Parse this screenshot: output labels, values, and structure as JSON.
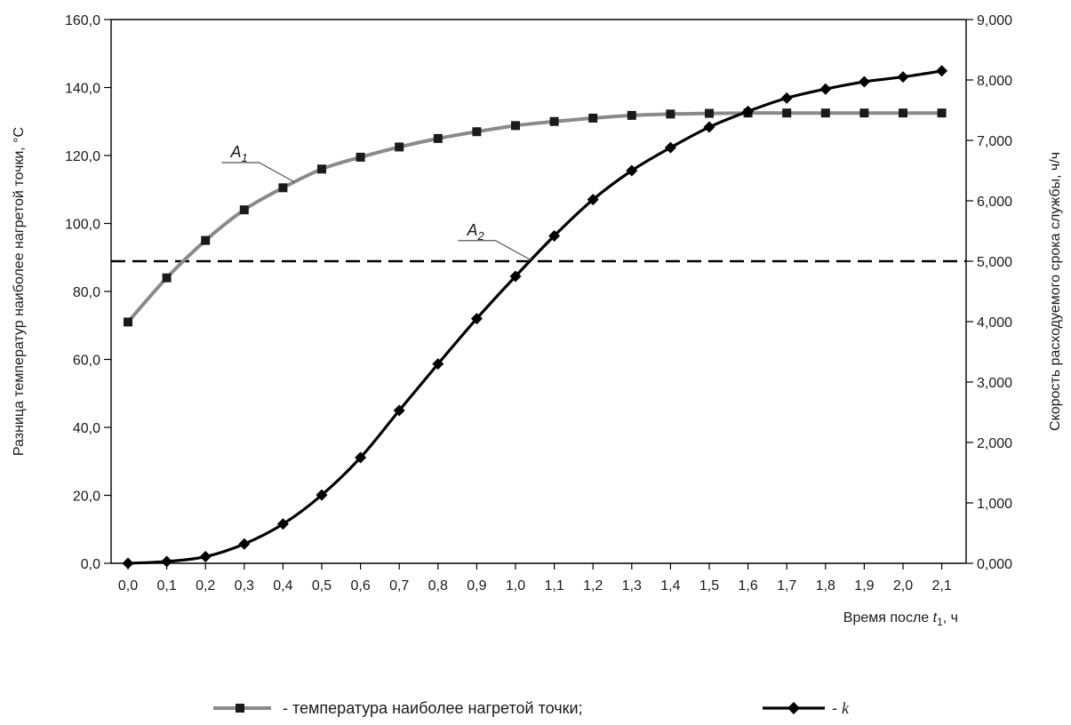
{
  "chart_data": {
    "type": "line",
    "x": [
      0.0,
      0.1,
      0.2,
      0.3,
      0.4,
      0.5,
      0.6,
      0.7,
      0.8,
      0.9,
      1.0,
      1.1,
      1.2,
      1.3,
      1.4,
      1.5,
      1.6,
      1.7,
      1.8,
      1.9,
      2.0,
      2.1
    ],
    "x_tick_labels": [
      "0,0",
      "0,1",
      "0,2",
      "0,3",
      "0,4",
      "0,5",
      "0,6",
      "0,7",
      "0,8",
      "0,9",
      "1,0",
      "1,1",
      "1,2",
      "1,3",
      "1,4",
      "1,5",
      "1,6",
      "1,7",
      "1,8",
      "1,9",
      "2,0",
      "2,1"
    ],
    "xlabel_prefix": "Время после ",
    "xlabel_var": "t",
    "xlabel_sub": "1",
    "xlabel_suffix": ", ч",
    "ylabel_left": "Разница температур наиболее нагретой точки, °С",
    "ylabel_right": "Скорость расходуемого срока службы, ч/ч",
    "ylim_left": [
      0,
      160
    ],
    "ylim_right": [
      0,
      9
    ],
    "y_left_ticks": [
      0,
      20,
      40,
      60,
      80,
      100,
      120,
      140,
      160
    ],
    "y_left_tick_labels": [
      "0,0",
      "20,0",
      "40,0",
      "60,0",
      "80,0",
      "100,0",
      "120,0",
      "140,0",
      "160,0"
    ],
    "y_right_ticks": [
      0,
      1,
      2,
      3,
      4,
      5,
      6,
      7,
      8,
      9
    ],
    "y_right_tick_labels": [
      "0,000",
      "1,000",
      "2,000",
      "3,000",
      "4,000",
      "5,000",
      "6,000",
      "7,000",
      "8,000",
      "9,000"
    ],
    "series": [
      {
        "name": "температура наиболее нагретой точки",
        "axis": "left",
        "marker": "square",
        "color": "#8a8a8a",
        "marker_color": "#1a1a1a",
        "values": [
          71,
          84,
          95,
          104,
          110.5,
          116,
          119.5,
          122.5,
          125,
          127,
          128.8,
          130,
          131,
          131.8,
          132.2,
          132.4,
          132.5,
          132.5,
          132.5,
          132.5,
          132.5,
          132.5
        ]
      },
      {
        "name": "k",
        "axis": "right",
        "marker": "diamond",
        "color": "#000000",
        "marker_color": "#000000",
        "values": [
          0.0,
          0.03,
          0.11,
          0.32,
          0.65,
          1.13,
          1.75,
          2.53,
          3.3,
          4.05,
          4.75,
          5.42,
          6.02,
          6.5,
          6.88,
          7.22,
          7.48,
          7.7,
          7.85,
          7.97,
          8.05,
          8.15
        ]
      }
    ],
    "reference_line": {
      "axis": "right",
      "value": 5.0,
      "style": "dashed",
      "color": "#000000"
    },
    "annotations": [
      {
        "label": "A",
        "sub": "1",
        "series": 0,
        "x": 0.43
      },
      {
        "label": "A",
        "sub": "2",
        "series": 1,
        "x": 1.04
      }
    ],
    "legend": {
      "placement": "bottom",
      "entries": [
        {
          "text": "- температура наиболее нагретой точки;",
          "series": 0
        },
        {
          "text": "- ",
          "italic_text": "k",
          "series": 1
        }
      ]
    },
    "grid": false
  }
}
